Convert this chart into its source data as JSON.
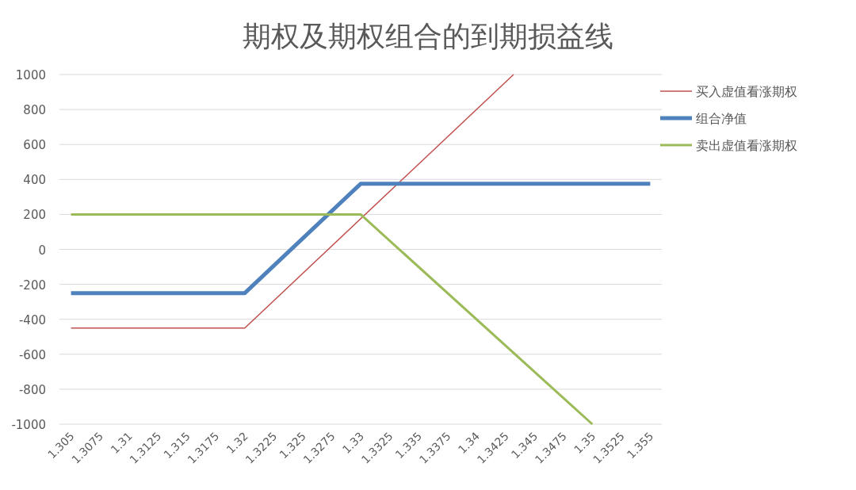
{
  "chart_data": {
    "type": "line",
    "title": "期权及期权组合的到期损益线",
    "xlim": [
      1.304,
      1.356
    ],
    "xticks": [
      1.305,
      1.3075,
      1.31,
      1.3125,
      1.315,
      1.3175,
      1.32,
      1.3225,
      1.325,
      1.3275,
      1.33,
      1.3325,
      1.335,
      1.3375,
      1.34,
      1.3425,
      1.345,
      1.3475,
      1.35,
      1.3525,
      1.355
    ],
    "ylim": [
      -1000,
      1000
    ],
    "yticks": [
      -1000,
      -800,
      -600,
      -400,
      -200,
      0,
      200,
      400,
      600,
      800,
      1000
    ],
    "grid": "y",
    "legend": "right",
    "line_style": "solid",
    "marker": "none",
    "series": [
      {
        "name": "买入虚值看涨期权",
        "color": "#c0504d",
        "x": [
          1.305,
          1.32,
          1.3432
        ],
        "values": [
          -450,
          -450,
          1000
        ]
      },
      {
        "name": "组合净值",
        "color": "#4f81bd",
        "x": [
          1.305,
          1.32,
          1.33,
          1.355
        ],
        "values": [
          -250,
          -250,
          375,
          375
        ]
      },
      {
        "name": "卖出虚值看涨期权",
        "color": "#9bbb59",
        "x": [
          1.305,
          1.33,
          1.35
        ],
        "values": [
          200,
          200,
          -1000
        ]
      }
    ]
  }
}
